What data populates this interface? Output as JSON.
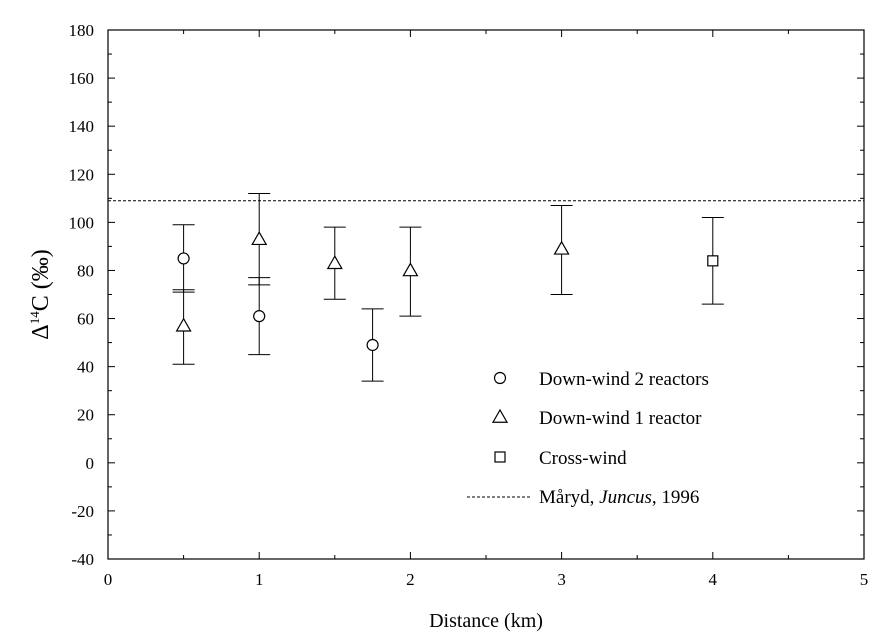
{
  "chart_data": {
    "type": "scatter",
    "xlabel": "Distance (km)",
    "ylabel": {
      "prefix": "Δ",
      "superscript": "14",
      "suffix": "C (‰)"
    },
    "xlim": [
      0,
      5
    ],
    "ylim": [
      -40,
      180
    ],
    "xticks": [
      "0",
      "1",
      "2",
      "3",
      "4",
      "5"
    ],
    "yticks": [
      "-40",
      "-20",
      "0",
      "20",
      "40",
      "60",
      "80",
      "100",
      "120",
      "140",
      "160",
      "180"
    ],
    "grid": false,
    "legend_position": "lower-right",
    "series": [
      {
        "name": "Down-wind 2 reactors",
        "marker": "circle",
        "points": [
          {
            "x": 0.5,
            "y": 85,
            "err_low": 71,
            "err_high": 99
          },
          {
            "x": 1.0,
            "y": 61,
            "err_low": 45,
            "err_high": 77
          },
          {
            "x": 1.75,
            "y": 49,
            "err_low": 34,
            "err_high": 64
          }
        ]
      },
      {
        "name": "Down-wind 1 reactor",
        "marker": "triangle",
        "points": [
          {
            "x": 0.5,
            "y": 57,
            "err_low": 41,
            "err_high": 72
          },
          {
            "x": 1.0,
            "y": 93,
            "err_low": 74,
            "err_high": 112
          },
          {
            "x": 1.5,
            "y": 83,
            "err_low": 68,
            "err_high": 98
          },
          {
            "x": 2.0,
            "y": 80,
            "err_low": 61,
            "err_high": 98
          },
          {
            "x": 3.0,
            "y": 89,
            "err_low": 70,
            "err_high": 107
          }
        ]
      },
      {
        "name": "Cross-wind",
        "marker": "square",
        "points": [
          {
            "x": 4.0,
            "y": 84,
            "err_low": 66,
            "err_high": 102
          }
        ]
      }
    ],
    "reference_line": {
      "y": 109,
      "style": "dashed",
      "legend_parts": [
        "Måryd, ",
        "Juncus",
        ", 1996"
      ]
    }
  }
}
